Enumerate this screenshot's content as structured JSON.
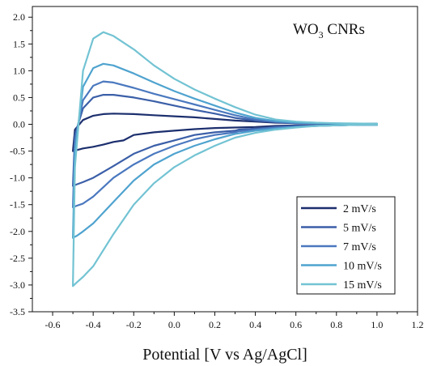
{
  "chart_data": {
    "type": "line",
    "title": "WO",
    "title_subscript": "3",
    "title_suffix": " CNRs",
    "xlabel": "Potential [V vs Ag/AgCl]",
    "ylabel": "",
    "xlim": [
      -0.7,
      1.2
    ],
    "ylim": [
      -3.5,
      2.2
    ],
    "xticks": [
      -0.6,
      -0.4,
      -0.2,
      0.0,
      0.2,
      0.4,
      0.6,
      0.8,
      1.0,
      1.2
    ],
    "yticks": [
      -3.5,
      -3.0,
      -2.5,
      -2.0,
      -1.5,
      -1.0,
      -0.5,
      0.0,
      0.5,
      1.0,
      1.5,
      2.0
    ],
    "xtick_labels": [
      "-0.6",
      "-0.4",
      "-0.2",
      "0.0",
      "0.2",
      "0.4",
      "0.6",
      "0.8",
      "1.0",
      "1.2"
    ],
    "ytick_labels": [
      "-3.5",
      "-3.0",
      "-2.5",
      "-2.0",
      "-1.5",
      "-1.0",
      "-0.5",
      "0.0",
      "0.5",
      "1.0",
      "1.5",
      "2.0"
    ],
    "legend_position": "bottom-right",
    "grid": false,
    "series": [
      {
        "name": "2 mV/s",
        "color": "#1c2f6e",
        "x": [
          -0.5,
          -0.49,
          -0.45,
          -0.4,
          -0.35,
          -0.3,
          -0.2,
          -0.1,
          0.0,
          0.1,
          0.2,
          0.3,
          0.4,
          0.5,
          0.6,
          0.7,
          0.8,
          0.9,
          1.0,
          1.0,
          0.9,
          0.8,
          0.7,
          0.6,
          0.5,
          0.4,
          0.3,
          0.2,
          0.1,
          0.0,
          -0.1,
          -0.2,
          -0.25,
          -0.3,
          -0.35,
          -0.4,
          -0.45,
          -0.48,
          -0.5
        ],
        "y": [
          -0.5,
          -0.1,
          0.08,
          0.16,
          0.19,
          0.2,
          0.19,
          0.17,
          0.15,
          0.13,
          0.1,
          0.07,
          0.05,
          0.03,
          0.02,
          0.015,
          0.012,
          0.01,
          0.01,
          -0.01,
          -0.01,
          -0.01,
          -0.02,
          -0.02,
          -0.03,
          -0.05,
          -0.06,
          -0.07,
          -0.09,
          -0.12,
          -0.15,
          -0.2,
          -0.3,
          -0.33,
          -0.38,
          -0.42,
          -0.45,
          -0.48,
          -0.5
        ]
      },
      {
        "name": "5 mV/s",
        "color": "#3b5fa8",
        "x": [
          -0.5,
          -0.49,
          -0.45,
          -0.4,
          -0.35,
          -0.3,
          -0.2,
          -0.1,
          0.0,
          0.1,
          0.2,
          0.3,
          0.4,
          0.5,
          0.6,
          0.7,
          0.8,
          0.9,
          1.0,
          1.0,
          0.9,
          0.8,
          0.7,
          0.6,
          0.5,
          0.4,
          0.32,
          0.3,
          0.2,
          0.1,
          0.0,
          -0.1,
          -0.2,
          -0.3,
          -0.4,
          -0.45,
          -0.48,
          -0.5
        ],
        "y": [
          -1.15,
          -0.2,
          0.3,
          0.5,
          0.55,
          0.55,
          0.5,
          0.43,
          0.35,
          0.27,
          0.2,
          0.12,
          0.07,
          0.04,
          0.02,
          0.015,
          0.012,
          0.01,
          0.01,
          -0.01,
          -0.01,
          -0.02,
          -0.02,
          -0.03,
          -0.05,
          -0.08,
          -0.1,
          -0.12,
          -0.15,
          -0.2,
          -0.3,
          -0.4,
          -0.55,
          -0.78,
          -1.0,
          -1.08,
          -1.12,
          -1.15
        ]
      },
      {
        "name": "7 mV/s",
        "color": "#4a78bf",
        "x": [
          -0.5,
          -0.49,
          -0.45,
          -0.4,
          -0.35,
          -0.3,
          -0.2,
          -0.1,
          0.0,
          0.1,
          0.2,
          0.3,
          0.4,
          0.5,
          0.6,
          0.7,
          0.8,
          0.9,
          1.0,
          1.0,
          0.9,
          0.8,
          0.7,
          0.6,
          0.5,
          0.4,
          0.32,
          0.3,
          0.2,
          0.1,
          0.0,
          -0.1,
          -0.2,
          -0.3,
          -0.4,
          -0.45,
          -0.48,
          -0.5
        ],
        "y": [
          -1.55,
          -0.3,
          0.45,
          0.72,
          0.8,
          0.78,
          0.68,
          0.57,
          0.47,
          0.37,
          0.27,
          0.17,
          0.09,
          0.05,
          0.03,
          0.02,
          0.015,
          0.01,
          0.01,
          -0.01,
          -0.01,
          -0.02,
          -0.03,
          -0.04,
          -0.06,
          -0.1,
          -0.13,
          -0.15,
          -0.2,
          -0.28,
          -0.4,
          -0.55,
          -0.75,
          -1.0,
          -1.35,
          -1.48,
          -1.52,
          -1.55
        ]
      },
      {
        "name": "10 mV/s",
        "color": "#4fa3cf",
        "x": [
          -0.5,
          -0.49,
          -0.45,
          -0.4,
          -0.35,
          -0.3,
          -0.2,
          -0.1,
          0.0,
          0.1,
          0.2,
          0.3,
          0.4,
          0.5,
          0.6,
          0.7,
          0.8,
          0.9,
          1.0,
          1.0,
          0.9,
          0.8,
          0.7,
          0.6,
          0.5,
          0.4,
          0.3,
          0.28,
          0.2,
          0.1,
          0.0,
          -0.1,
          -0.2,
          -0.3,
          -0.4,
          -0.45,
          -0.48,
          -0.5
        ],
        "y": [
          -2.12,
          -0.5,
          0.7,
          1.05,
          1.13,
          1.1,
          0.95,
          0.78,
          0.62,
          0.48,
          0.35,
          0.22,
          0.12,
          0.06,
          0.03,
          0.02,
          0.015,
          0.01,
          0.01,
          -0.01,
          -0.01,
          -0.02,
          -0.03,
          -0.05,
          -0.08,
          -0.12,
          -0.18,
          -0.2,
          -0.28,
          -0.4,
          -0.55,
          -0.75,
          -1.05,
          -1.45,
          -1.85,
          -2.0,
          -2.08,
          -2.12
        ]
      },
      {
        "name": "15 mV/s",
        "color": "#72c3d3",
        "x": [
          -0.5,
          -0.49,
          -0.45,
          -0.4,
          -0.35,
          -0.3,
          -0.2,
          -0.1,
          0.0,
          0.1,
          0.2,
          0.3,
          0.4,
          0.5,
          0.6,
          0.7,
          0.8,
          0.9,
          1.0,
          1.0,
          0.9,
          0.8,
          0.7,
          0.6,
          0.5,
          0.4,
          0.3,
          0.28,
          0.2,
          0.1,
          0.0,
          -0.1,
          -0.2,
          -0.3,
          -0.4,
          -0.45,
          -0.48,
          -0.5
        ],
        "y": [
          -3.02,
          -0.8,
          1.0,
          1.6,
          1.72,
          1.65,
          1.4,
          1.1,
          0.85,
          0.65,
          0.48,
          0.32,
          0.18,
          0.09,
          0.05,
          0.03,
          0.02,
          0.015,
          0.01,
          -0.01,
          -0.01,
          -0.02,
          -0.03,
          -0.06,
          -0.1,
          -0.16,
          -0.25,
          -0.28,
          -0.4,
          -0.58,
          -0.8,
          -1.1,
          -1.5,
          -2.05,
          -2.65,
          -2.85,
          -2.95,
          -3.02
        ]
      }
    ]
  }
}
